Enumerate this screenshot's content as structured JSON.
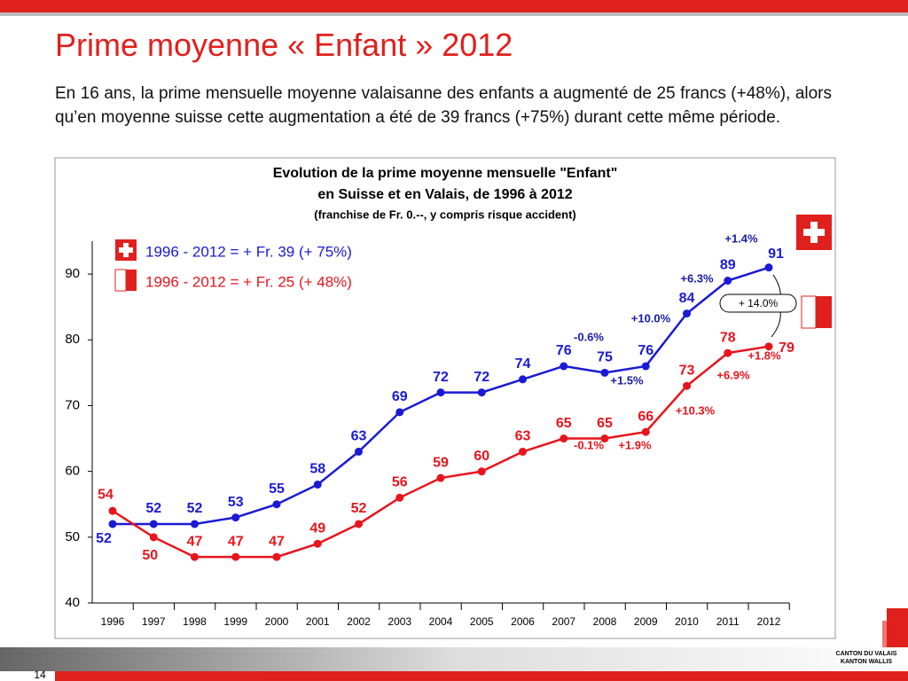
{
  "slide": {
    "title": "Prime moyenne « Enfant » 2012",
    "paragraph": "En 16 ans, la prime mensuelle moyenne valaisanne des enfants a augmenté de 25 francs (+48%), alors qu’en moyenne suisse cette augmentation a été de 39 francs (+75%) durant cette même période.",
    "page_number": "14",
    "logo_line1": "CANTON DU VALAIS",
    "logo_line2": "KANTON WALLIS"
  },
  "chart_data": {
    "type": "line",
    "title": "Evolution de la prime moyenne mensuelle \"Enfant\"",
    "subtitle": "en Suisse et en Valais, de 1996 à 2012",
    "note": "(franchise de Fr. 0.--, y compris risque accident)",
    "categories": [
      "1996",
      "1997",
      "1998",
      "1999",
      "2000",
      "2001",
      "2002",
      "2003",
      "2004",
      "2005",
      "2006",
      "2007",
      "2008",
      "2009",
      "2010",
      "2011",
      "2012"
    ],
    "series": [
      {
        "name": "1996 - 2012 =  + Fr. 39 (+ 75%)",
        "color": "#1a1ad6",
        "values": [
          52,
          52,
          52,
          53,
          55,
          58,
          63,
          69,
          72,
          72,
          74,
          76,
          75,
          76,
          84,
          89,
          91
        ]
      },
      {
        "name": "1996 - 2012 =  + Fr. 25 (+ 48%)",
        "color": "#e8141c",
        "values": [
          54,
          50,
          47,
          47,
          47,
          49,
          52,
          56,
          59,
          60,
          63,
          65,
          65,
          66,
          73,
          78,
          79
        ]
      }
    ],
    "annotations": [
      "+1.4%",
      "+6.3%",
      "+10.0%",
      "-0.6%",
      "+1.5%",
      "-0.1%",
      "+1.9%",
      "+10.3%",
      "+6.9%",
      "+1.8%",
      "+ 14.0%"
    ],
    "ylim": [
      40,
      95
    ],
    "yticks": [
      40,
      50,
      60,
      70,
      80,
      90
    ],
    "grid": false
  }
}
